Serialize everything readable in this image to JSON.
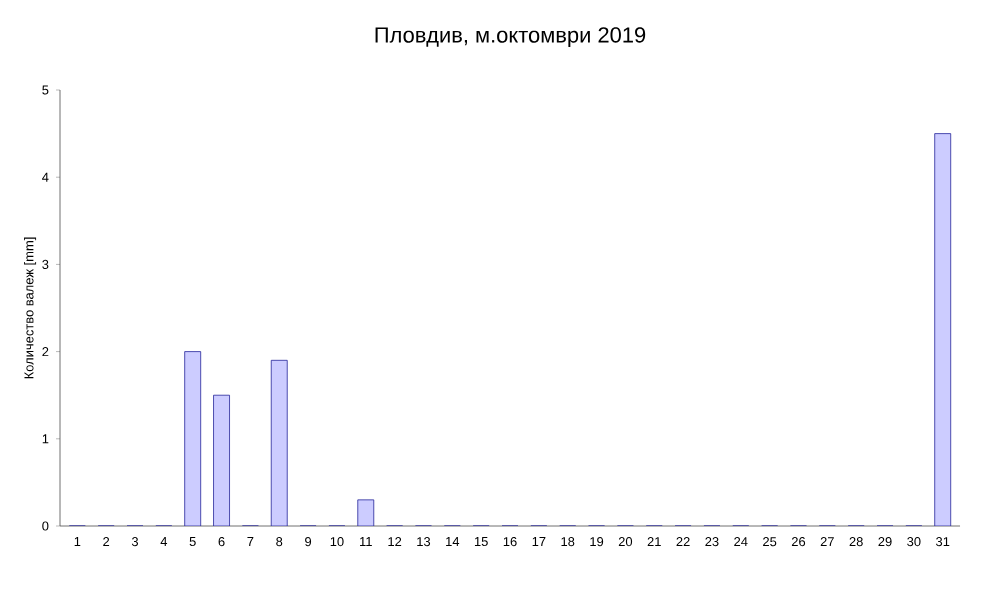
{
  "chart_data": {
    "type": "bar",
    "title": "Пловдив, м.октомври 2019",
    "ylabel": "Количество валеж [mm]",
    "categories": [
      "1",
      "2",
      "3",
      "4",
      "5",
      "6",
      "7",
      "8",
      "9",
      "10",
      "11",
      "12",
      "13",
      "14",
      "15",
      "16",
      "17",
      "18",
      "19",
      "20",
      "21",
      "22",
      "23",
      "24",
      "25",
      "26",
      "27",
      "28",
      "29",
      "30",
      "31"
    ],
    "values": [
      0,
      0,
      0,
      0,
      2,
      1.5,
      0,
      1.9,
      0,
      0,
      0.3,
      0,
      0,
      0,
      0,
      0,
      0,
      0,
      0,
      0,
      0,
      0,
      0,
      0,
      0,
      0,
      0,
      0,
      0,
      0,
      4.5
    ],
    "color": "#ccccff",
    "ylim": [
      0,
      5
    ],
    "yticks": [
      0,
      1,
      2,
      3,
      4,
      5
    ],
    "grid": false
  }
}
